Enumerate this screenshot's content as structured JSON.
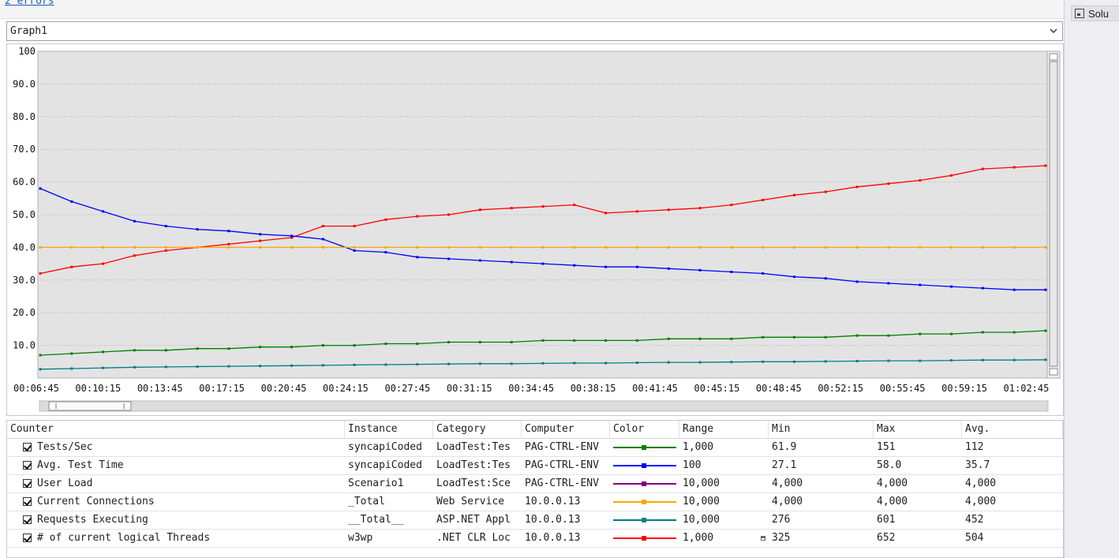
{
  "header": {
    "errors_link": "2 errors"
  },
  "side_panel": {
    "tab_label": "Solu"
  },
  "graph_selector": {
    "value": "Graph1"
  },
  "chart_data": {
    "type": "line",
    "ylim": [
      0,
      100
    ],
    "y_ticks": [
      "100",
      "90.0",
      "80.0",
      "70.0",
      "60.0",
      "50.0",
      "40.0",
      "30.0",
      "20.0",
      "10.0"
    ],
    "x_ticks": [
      "00:06:45",
      "00:10:15",
      "00:13:45",
      "00:17:15",
      "00:20:45",
      "00:24:15",
      "00:27:45",
      "00:31:15",
      "00:34:45",
      "00:38:15",
      "00:41:45",
      "00:45:15",
      "00:48:45",
      "00:52:15",
      "00:55:45",
      "00:59:15",
      "01:02:45"
    ],
    "grid": true,
    "series": [
      {
        "color": "#ff0000",
        "values": [
          32.0,
          34.0,
          35.0,
          37.5,
          39.0,
          40.0,
          41.0,
          42.0,
          43.0,
          46.5,
          46.5,
          48.5,
          49.5,
          50.0,
          51.5,
          52.0,
          52.5,
          53.0,
          50.5,
          51.0,
          51.5,
          52.0,
          53.0,
          54.5,
          56.0,
          57.0,
          58.5,
          59.5,
          60.5,
          62.0,
          64.0,
          64.5,
          65.0
        ]
      },
      {
        "color": "#0000ff",
        "values": [
          58.0,
          54.0,
          51.0,
          48.0,
          46.5,
          45.5,
          45.0,
          44.0,
          43.5,
          42.5,
          39.0,
          38.5,
          37.0,
          36.5,
          36.0,
          35.5,
          35.0,
          34.5,
          34.0,
          34.0,
          33.5,
          33.0,
          32.5,
          32.0,
          31.0,
          30.5,
          29.5,
          29.0,
          28.5,
          28.0,
          27.5,
          27.0,
          27.0
        ]
      },
      {
        "color": "#ffa500",
        "values": [
          40.0,
          40.0,
          40.0,
          40.0,
          40.0,
          40.0,
          40.0,
          40.0,
          40.0,
          40.0,
          40.0,
          40.0,
          40.0,
          40.0,
          40.0,
          40.0,
          40.0,
          40.0,
          40.0,
          40.0,
          40.0,
          40.0,
          40.0,
          40.0,
          40.0,
          40.0,
          40.0,
          40.0,
          40.0,
          40.0,
          40.0,
          40.0,
          40.0
        ]
      },
      {
        "color": "#008000",
        "values": [
          7.0,
          7.5,
          8.0,
          8.5,
          8.5,
          9.0,
          9.0,
          9.5,
          9.5,
          10.0,
          10.0,
          10.5,
          10.5,
          11.0,
          11.0,
          11.0,
          11.5,
          11.5,
          11.5,
          11.5,
          12.0,
          12.0,
          12.0,
          12.5,
          12.5,
          12.5,
          13.0,
          13.0,
          13.5,
          13.5,
          14.0,
          14.0,
          14.5
        ]
      },
      {
        "color": "#008080",
        "values": [
          2.7,
          2.9,
          3.1,
          3.3,
          3.4,
          3.5,
          3.6,
          3.7,
          3.8,
          3.9,
          4.0,
          4.1,
          4.2,
          4.3,
          4.4,
          4.4,
          4.5,
          4.6,
          4.6,
          4.7,
          4.8,
          4.8,
          4.9,
          5.0,
          5.0,
          5.1,
          5.2,
          5.3,
          5.3,
          5.4,
          5.5,
          5.5,
          5.6
        ]
      }
    ]
  },
  "table": {
    "columns": [
      "Counter",
      "Instance",
      "Category",
      "Computer",
      "Color",
      "Range",
      "Min",
      "Max",
      "Avg."
    ],
    "rows": [
      {
        "counter": "Tests/Sec",
        "instance": "syncapiCoded",
        "category": "LoadTest:Tes",
        "computer": "PAG-CTRL-ENV",
        "color": "#008000",
        "range": "1,000",
        "min": "61.9",
        "max": "151",
        "avg": "112"
      },
      {
        "counter": "Avg. Test Time",
        "instance": "syncapiCoded",
        "category": "LoadTest:Tes",
        "computer": "PAG-CTRL-ENV",
        "color": "#0000ff",
        "range": "100",
        "min": "27.1",
        "max": "58.0",
        "avg": "35.7"
      },
      {
        "counter": "User Load",
        "instance": "Scenario1",
        "category": "LoadTest:Sce",
        "computer": "PAG-CTRL-ENV",
        "color": "#800080",
        "range": "10,000",
        "min": "4,000",
        "max": "4,000",
        "avg": "4,000"
      },
      {
        "counter": "Current Connections",
        "instance": "_Total",
        "category": "Web Service",
        "computer": "10.0.0.13",
        "color": "#ffa500",
        "range": "10,000",
        "min": "4,000",
        "max": "4,000",
        "avg": "4,000"
      },
      {
        "counter": "Requests Executing",
        "instance": "__Total__",
        "category": "ASP.NET Appl",
        "computer": "10.0.0.13",
        "color": "#008080",
        "range": "10,000",
        "min": "276",
        "max": "601",
        "avg": "452"
      },
      {
        "counter": "# of current logical Threads",
        "instance": "w3wp",
        "category": ".NET CLR Loc",
        "computer": "10.0.0.13",
        "color": "#ff0000",
        "range": "1,000",
        "min": "325",
        "max": "652",
        "avg": "504"
      }
    ]
  }
}
